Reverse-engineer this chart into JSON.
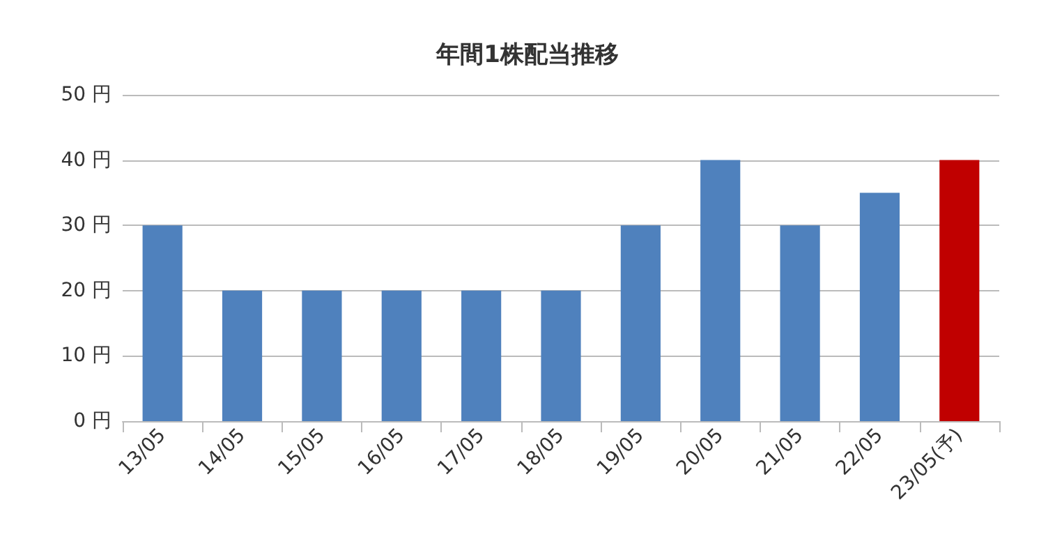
{
  "chart_data": {
    "type": "bar",
    "title": "年間1株配当推移",
    "categories": [
      "13/05",
      "14/05",
      "15/05",
      "16/05",
      "17/05",
      "18/05",
      "19/05",
      "20/05",
      "21/05",
      "22/05",
      "23/05(予)"
    ],
    "values": [
      30,
      20,
      20,
      20,
      20,
      20,
      30,
      40,
      30,
      35,
      40
    ],
    "colors": [
      "#4f81bd",
      "#4f81bd",
      "#4f81bd",
      "#4f81bd",
      "#4f81bd",
      "#4f81bd",
      "#4f81bd",
      "#4f81bd",
      "#4f81bd",
      "#4f81bd",
      "#c00000"
    ],
    "ylim": [
      0,
      50
    ],
    "yticks": [
      {
        "value": 0,
        "label": "0 円"
      },
      {
        "value": 10,
        "label": "10 円"
      },
      {
        "value": 20,
        "label": "20 円"
      },
      {
        "value": 30,
        "label": "30 円"
      },
      {
        "value": 40,
        "label": "40 円"
      },
      {
        "value": 50,
        "label": "50 円"
      }
    ],
    "grid": "y"
  }
}
